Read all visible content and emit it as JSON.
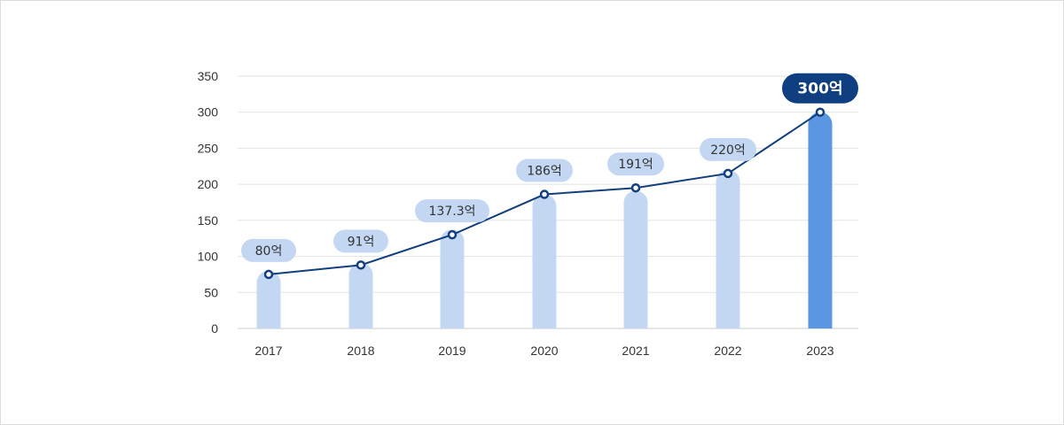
{
  "chart_data": {
    "type": "bar",
    "categories": [
      "2017",
      "2018",
      "2019",
      "2020",
      "2021",
      "2022",
      "2023"
    ],
    "values": [
      80,
      91,
      137.3,
      186,
      191,
      220,
      300
    ],
    "line_values": [
      75,
      88,
      130,
      186,
      195,
      215,
      300
    ],
    "data_labels": [
      "80억",
      "91억",
      "137.3억",
      "186억",
      "191억",
      "220억",
      "300억"
    ],
    "highlight_index": 6,
    "title": "",
    "xlabel": "",
    "ylabel": "",
    "ylim": [
      0,
      350
    ],
    "yticks": [
      0,
      50,
      100,
      150,
      200,
      250,
      300,
      350
    ],
    "grid": true,
    "legend": "none",
    "colors": {
      "bar": "#c4d7f2",
      "bar_highlight": "#5b96e3",
      "line": "#133f7c",
      "marker_fill": "#ffffff",
      "label_bg": "#c4d7f2",
      "label_bg_highlight": "#0f3f80",
      "grid": "#e2e2e2",
      "axis": "#cccccc"
    }
  }
}
